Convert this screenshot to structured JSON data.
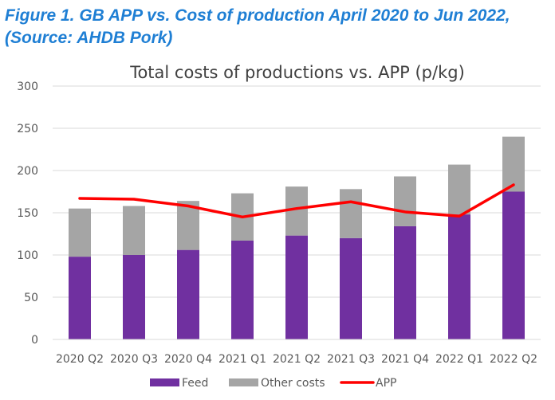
{
  "figure_caption": "Figure 1. GB APP vs. Cost of production April 2020 to Jun 2022, (Source: AHDB Pork)",
  "colors": {
    "caption": "#1f7fd4",
    "feed": "#7030a0",
    "other_costs": "#a5a5a5",
    "app_line": "#ff0000",
    "gridline": "#d9d9d9",
    "text": "#595959"
  },
  "chart_data": {
    "type": "bar",
    "stacked": true,
    "title": "Total costs of productions vs. APP (p/kg)",
    "xlabel": "",
    "ylabel": "",
    "categories": [
      "2020 Q2",
      "2020 Q3",
      "2020 Q4",
      "2021 Q1",
      "2021 Q2",
      "2021 Q3",
      "2021 Q4",
      "2022 Q1",
      "2022 Q2"
    ],
    "series": [
      {
        "name": "Feed",
        "type": "bar",
        "color": "#7030a0",
        "values": [
          98,
          100,
          106,
          117,
          123,
          120,
          134,
          148,
          175
        ]
      },
      {
        "name": "Other costs",
        "type": "bar",
        "color": "#a5a5a5",
        "values": [
          57,
          58,
          58,
          56,
          58,
          58,
          59,
          59,
          65
        ]
      },
      {
        "name": "APP",
        "type": "line",
        "color": "#ff0000",
        "values": [
          167,
          166,
          158,
          145,
          155,
          163,
          151,
          146,
          183
        ]
      }
    ],
    "ylim": [
      0,
      300
    ],
    "yticks": [
      0,
      50,
      100,
      150,
      200,
      250,
      300
    ],
    "grid": true,
    "legend_position": "bottom"
  }
}
